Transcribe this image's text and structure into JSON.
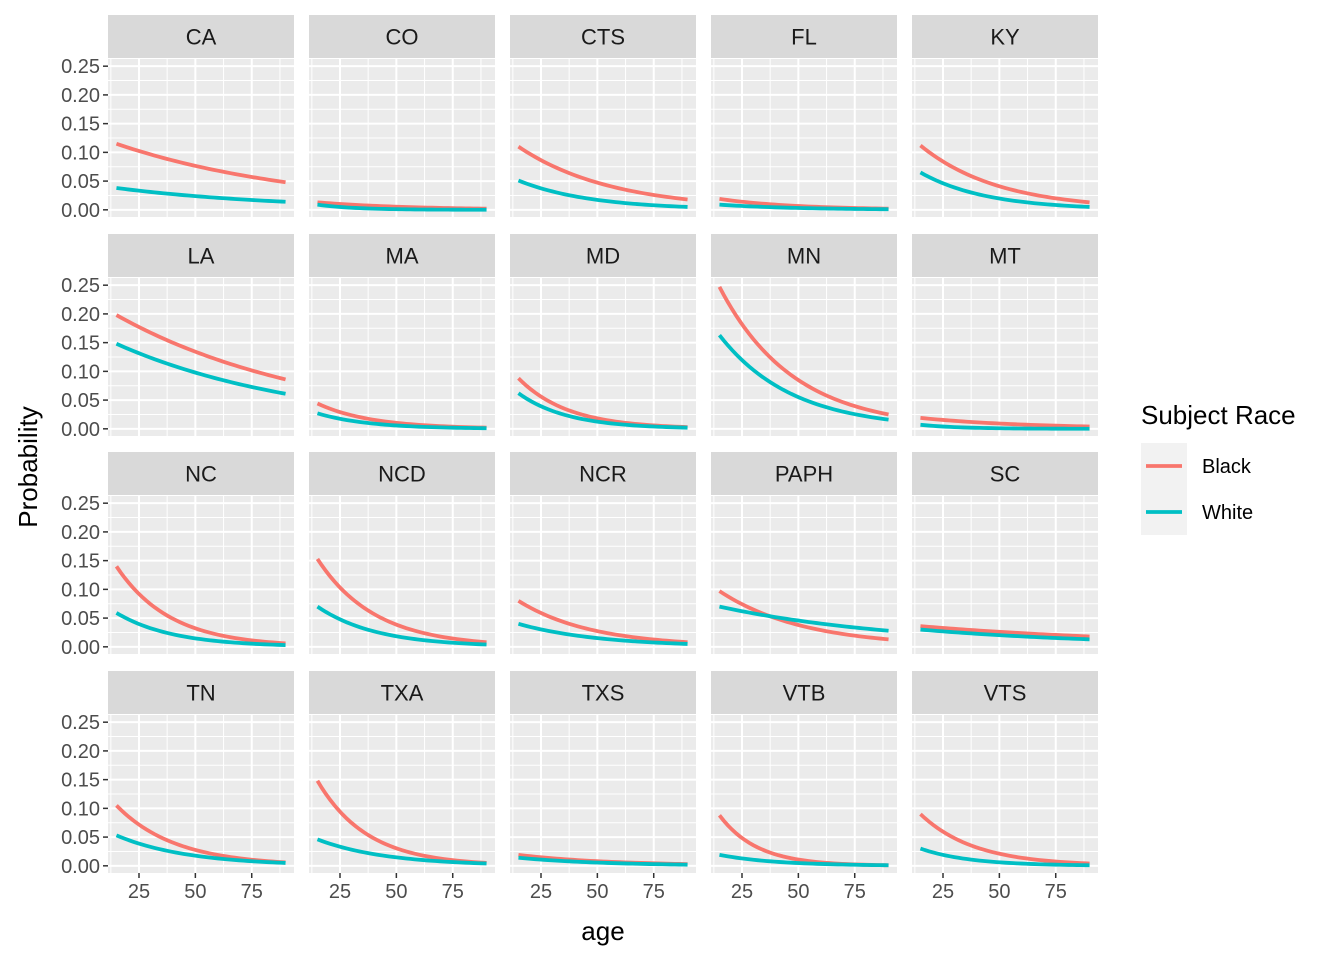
{
  "chart_data": {
    "type": "line",
    "facet_layout": "4x5 grid, shared axes",
    "xlabel": "age",
    "ylabel": "Probability",
    "xlim": [
      15,
      90
    ],
    "ylim": [
      0,
      0.25
    ],
    "x_ticks": [
      25,
      50,
      75
    ],
    "y_ticks": [
      "0.00",
      "0.05",
      "0.10",
      "0.15",
      "0.20",
      "0.25"
    ],
    "grid": true,
    "legend": {
      "title": "Subject Race",
      "placement": "right",
      "entries": [
        {
          "name": "Black",
          "color": "#F8766D"
        },
        {
          "name": "White",
          "color": "#00BFC4"
        }
      ]
    },
    "panels": [
      {
        "name": "CA",
        "series": [
          {
            "name": "Black",
            "x": [
              15,
              90
            ],
            "y": [
              0.115,
              0.048
            ]
          },
          {
            "name": "White",
            "x": [
              15,
              90
            ],
            "y": [
              0.038,
              0.014
            ]
          }
        ]
      },
      {
        "name": "CO",
        "series": [
          {
            "name": "Black",
            "x": [
              15,
              90
            ],
            "y": [
              0.013,
              0.002
            ]
          },
          {
            "name": "White",
            "x": [
              15,
              90
            ],
            "y": [
              0.009,
              0.0
            ]
          }
        ]
      },
      {
        "name": "CTS",
        "series": [
          {
            "name": "Black",
            "x": [
              15,
              90
            ],
            "y": [
              0.11,
              0.018
            ]
          },
          {
            "name": "White",
            "x": [
              15,
              90
            ],
            "y": [
              0.051,
              0.005
            ]
          }
        ]
      },
      {
        "name": "FL",
        "series": [
          {
            "name": "Black",
            "x": [
              15,
              90
            ],
            "y": [
              0.019,
              0.002
            ]
          },
          {
            "name": "White",
            "x": [
              15,
              90
            ],
            "y": [
              0.009,
              0.001
            ]
          }
        ]
      },
      {
        "name": "KY",
        "series": [
          {
            "name": "Black",
            "x": [
              15,
              90
            ],
            "y": [
              0.112,
              0.013
            ]
          },
          {
            "name": "White",
            "x": [
              15,
              90
            ],
            "y": [
              0.065,
              0.005
            ]
          }
        ]
      },
      {
        "name": "LA",
        "series": [
          {
            "name": "Black",
            "x": [
              15,
              90
            ],
            "y": [
              0.198,
              0.086
            ]
          },
          {
            "name": "White",
            "x": [
              15,
              90
            ],
            "y": [
              0.148,
              0.061
            ]
          }
        ]
      },
      {
        "name": "MA",
        "series": [
          {
            "name": "Black",
            "x": [
              15,
              90
            ],
            "y": [
              0.044,
              0.002
            ]
          },
          {
            "name": "White",
            "x": [
              15,
              90
            ],
            "y": [
              0.027,
              0.001
            ]
          }
        ]
      },
      {
        "name": "MD",
        "series": [
          {
            "name": "Black",
            "x": [
              15,
              90
            ],
            "y": [
              0.088,
              0.003
            ]
          },
          {
            "name": "White",
            "x": [
              15,
              90
            ],
            "y": [
              0.062,
              0.002
            ]
          }
        ]
      },
      {
        "name": "MN",
        "series": [
          {
            "name": "Black",
            "x": [
              15,
              90
            ],
            "y": [
              0.247,
              0.025
            ]
          },
          {
            "name": "White",
            "x": [
              15,
              90
            ],
            "y": [
              0.163,
              0.016
            ]
          }
        ]
      },
      {
        "name": "MT",
        "series": [
          {
            "name": "Black",
            "x": [
              15,
              90
            ],
            "y": [
              0.019,
              0.004
            ]
          },
          {
            "name": "White",
            "x": [
              15,
              90
            ],
            "y": [
              0.007,
              0.0
            ]
          }
        ]
      },
      {
        "name": "NC",
        "series": [
          {
            "name": "Black",
            "x": [
              15,
              90
            ],
            "y": [
              0.14,
              0.006
            ]
          },
          {
            "name": "White",
            "x": [
              15,
              90
            ],
            "y": [
              0.059,
              0.003
            ]
          }
        ]
      },
      {
        "name": "NCD",
        "series": [
          {
            "name": "Black",
            "x": [
              15,
              90
            ],
            "y": [
              0.153,
              0.008
            ]
          },
          {
            "name": "White",
            "x": [
              15,
              90
            ],
            "y": [
              0.07,
              0.004
            ]
          }
        ]
      },
      {
        "name": "NCR",
        "series": [
          {
            "name": "Black",
            "x": [
              15,
              90
            ],
            "y": [
              0.08,
              0.008
            ]
          },
          {
            "name": "White",
            "x": [
              15,
              90
            ],
            "y": [
              0.04,
              0.005
            ]
          }
        ]
      },
      {
        "name": "PAPH",
        "series": [
          {
            "name": "Black",
            "x": [
              15,
              90
            ],
            "y": [
              0.097,
              0.013
            ]
          },
          {
            "name": "White",
            "x": [
              15,
              90
            ],
            "y": [
              0.07,
              0.028
            ]
          }
        ]
      },
      {
        "name": "SC",
        "series": [
          {
            "name": "Black",
            "x": [
              15,
              90
            ],
            "y": [
              0.036,
              0.018
            ]
          },
          {
            "name": "White",
            "x": [
              15,
              90
            ],
            "y": [
              0.03,
              0.013
            ]
          }
        ]
      },
      {
        "name": "TN",
        "series": [
          {
            "name": "Black",
            "x": [
              15,
              90
            ],
            "y": [
              0.105,
              0.006
            ]
          },
          {
            "name": "White",
            "x": [
              15,
              90
            ],
            "y": [
              0.053,
              0.005
            ]
          }
        ]
      },
      {
        "name": "TXA",
        "series": [
          {
            "name": "Black",
            "x": [
              15,
              90
            ],
            "y": [
              0.148,
              0.005
            ]
          },
          {
            "name": "White",
            "x": [
              15,
              90
            ],
            "y": [
              0.046,
              0.004
            ]
          }
        ]
      },
      {
        "name": "TXS",
        "series": [
          {
            "name": "Black",
            "x": [
              15,
              90
            ],
            "y": [
              0.019,
              0.003
            ]
          },
          {
            "name": "White",
            "x": [
              15,
              90
            ],
            "y": [
              0.014,
              0.002
            ]
          }
        ]
      },
      {
        "name": "VTB",
        "series": [
          {
            "name": "Black",
            "x": [
              15,
              90
            ],
            "y": [
              0.088,
              0.001
            ]
          },
          {
            "name": "White",
            "x": [
              15,
              90
            ],
            "y": [
              0.019,
              0.001
            ]
          }
        ]
      },
      {
        "name": "VTS",
        "series": [
          {
            "name": "Black",
            "x": [
              15,
              90
            ],
            "y": [
              0.09,
              0.004
            ]
          },
          {
            "name": "White",
            "x": [
              15,
              90
            ],
            "y": [
              0.03,
              0.001
            ]
          }
        ]
      }
    ]
  }
}
